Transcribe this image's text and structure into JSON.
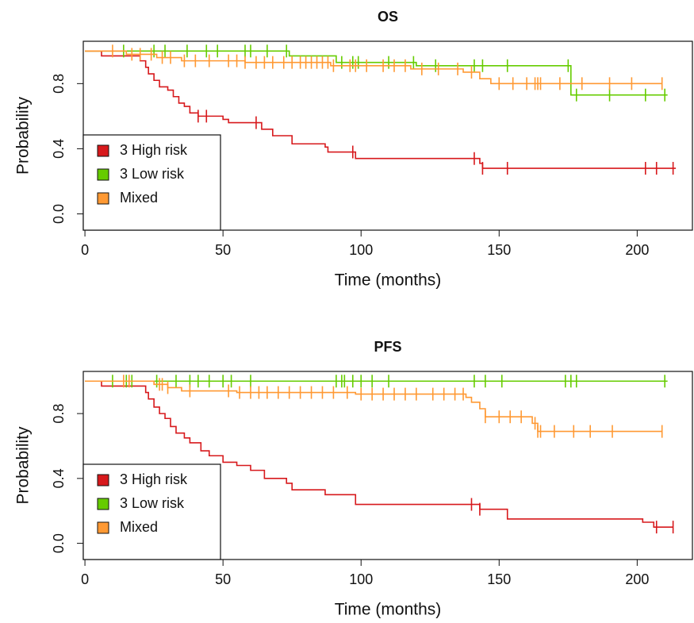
{
  "chart_data": [
    {
      "type": "step",
      "title": "OS",
      "x_label": "Time (months)",
      "y_label": "Probability",
      "xlim": [
        -0.6,
        220
      ],
      "ylim": [
        -0.1,
        1.06
      ],
      "xticks": [
        0,
        50,
        100,
        150,
        200
      ],
      "yticks": [
        {
          "value": 0.0,
          "label": "0.0"
        },
        0.4,
        0.8
      ],
      "legend": "bottomleft",
      "series": [
        {
          "name": "3 High risk",
          "color": "#d7191c",
          "x": [
            0,
            6,
            20,
            22,
            23,
            25,
            27,
            30,
            32,
            34,
            36,
            38,
            41,
            50,
            52,
            64,
            68,
            75,
            87,
            88,
            98,
            143,
            144,
            214
          ],
          "values": [
            1,
            0.97,
            0.94,
            0.9,
            0.86,
            0.82,
            0.78,
            0.76,
            0.72,
            0.68,
            0.66,
            0.62,
            0.6,
            0.58,
            0.56,
            0.52,
            0.48,
            0.43,
            0.41,
            0.38,
            0.34,
            0.31,
            0.28,
            0.28
          ],
          "censor_x": [
            41,
            44,
            62,
            97,
            141,
            144,
            153,
            203,
            207,
            213
          ]
        },
        {
          "name": "3 Low risk",
          "color": "#66cc00",
          "x": [
            0,
            74,
            91,
            120,
            176,
            211
          ],
          "values": [
            1,
            0.97,
            0.93,
            0.91,
            0.73,
            0.73
          ],
          "censor_x": [
            14,
            25,
            29,
            37,
            44,
            48,
            58,
            60,
            66,
            73,
            93,
            97,
            99,
            110,
            119,
            127,
            141,
            144,
            153,
            175,
            178,
            190,
            203,
            210
          ]
        },
        {
          "name": "Mixed",
          "color": "#ff9933",
          "x": [
            0,
            15,
            26,
            35,
            58,
            89,
            118,
            137,
            143,
            147,
            209
          ],
          "values": [
            1,
            0.98,
            0.96,
            0.94,
            0.93,
            0.91,
            0.89,
            0.87,
            0.83,
            0.8,
            0.8
          ],
          "censor_x": [
            10,
            17,
            20,
            24,
            28,
            31,
            36,
            40,
            45,
            52,
            55,
            58,
            62,
            65,
            68,
            72,
            75,
            78,
            80,
            82,
            84,
            86,
            88,
            90,
            96,
            98,
            102,
            108,
            112,
            116,
            122,
            128,
            135,
            140,
            150,
            155,
            160,
            163,
            164,
            165,
            172,
            180,
            190,
            198,
            209
          ]
        }
      ]
    },
    {
      "type": "step",
      "title": "PFS",
      "x_label": "Time (months)",
      "y_label": "Probability",
      "xlim": [
        -0.6,
        220
      ],
      "ylim": [
        -0.1,
        1.06
      ],
      "xticks": [
        0,
        50,
        100,
        150,
        200
      ],
      "yticks": [
        {
          "value": 0.0,
          "label": "0.0"
        },
        0.4,
        0.8
      ],
      "legend": "bottomleft",
      "series": [
        {
          "name": "3 High risk",
          "color": "#d7191c",
          "x": [
            0,
            6,
            22,
            23,
            25,
            27,
            29,
            31,
            33,
            36,
            38,
            42,
            45,
            50,
            55,
            60,
            65,
            73,
            75,
            87,
            98,
            143,
            153,
            202,
            206,
            213
          ],
          "values": [
            1,
            0.97,
            0.93,
            0.89,
            0.84,
            0.8,
            0.77,
            0.72,
            0.68,
            0.65,
            0.62,
            0.57,
            0.54,
            0.5,
            0.48,
            0.45,
            0.4,
            0.37,
            0.33,
            0.3,
            0.24,
            0.21,
            0.15,
            0.13,
            0.1,
            0.1
          ],
          "censor_x": [
            140,
            143,
            207,
            213
          ]
        },
        {
          "name": "3 Low risk",
          "color": "#66cc00",
          "x": [
            0,
            211
          ],
          "values": [
            1,
            1
          ],
          "censor_x": [
            10,
            15,
            17,
            26,
            33,
            38,
            41,
            45,
            50,
            53,
            60,
            91,
            93,
            94,
            97,
            100,
            104,
            110,
            141,
            145,
            151,
            174,
            176,
            178,
            210
          ]
        },
        {
          "name": "Mixed",
          "color": "#ff9933",
          "x": [
            0,
            25,
            30,
            35,
            55,
            98,
            138,
            140,
            143,
            145,
            162,
            164,
            209
          ],
          "values": [
            1,
            0.98,
            0.96,
            0.94,
            0.93,
            0.92,
            0.9,
            0.87,
            0.83,
            0.78,
            0.74,
            0.69,
            0.69
          ],
          "censor_x": [
            14,
            16,
            27,
            28,
            30,
            38,
            52,
            56,
            60,
            63,
            66,
            70,
            74,
            78,
            82,
            86,
            90,
            95,
            100,
            104,
            108,
            112,
            116,
            120,
            126,
            130,
            134,
            137,
            145,
            150,
            154,
            158,
            163,
            164,
            165,
            170,
            177,
            183,
            191,
            209
          ]
        }
      ]
    }
  ]
}
